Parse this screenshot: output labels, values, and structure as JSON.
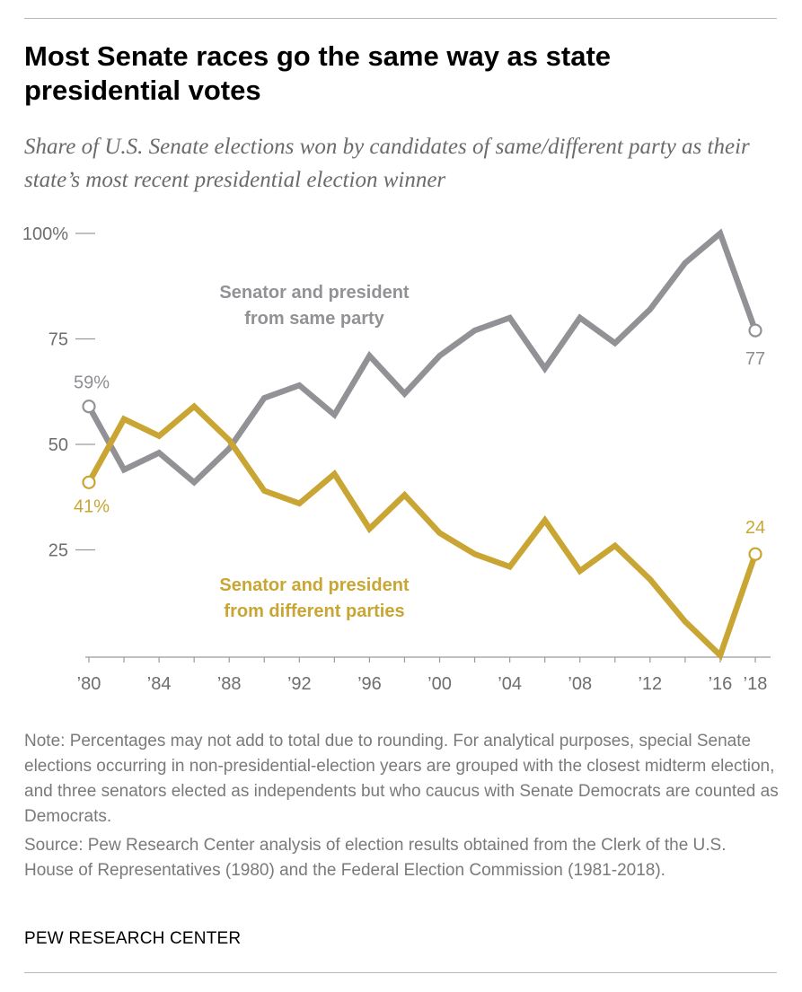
{
  "title": "Most Senate races go the same way as state presidential votes",
  "subtitle": "Share of U.S. Senate elections won by candidates of same/different party as their state’s most recent presidential election winner",
  "note": "Note: Percentages may not add to total due to rounding. For analytical purposes, special Senate elections occurring in non-presidential-election years are grouped with the closest midterm election, and three senators elected as independents but who caucus with Senate Democrats are counted as Democrats.",
  "source": "Source: Pew Research Center analysis of election results obtained from the Clerk of the U.S. House of Representatives (1980) and the Federal Election Commission (1981-2018).",
  "footer": "PEW RESEARCH CENTER",
  "colors": {
    "same": "#929296",
    "different": "#c9a633"
  },
  "chart_data": {
    "type": "line",
    "x": [
      1980,
      1982,
      1984,
      1986,
      1988,
      1990,
      1992,
      1994,
      1996,
      1998,
      2000,
      2002,
      2004,
      2006,
      2008,
      2010,
      2012,
      2014,
      2016,
      2018
    ],
    "xtick_values": [
      1980,
      1984,
      1988,
      1992,
      1996,
      2000,
      2004,
      2008,
      2012,
      2016,
      2018
    ],
    "xtick_labels": [
      "’80",
      "’84",
      "’88",
      "’92",
      "’96",
      "’00",
      "’04",
      "’08",
      "’12",
      "’16",
      "’18"
    ],
    "ytick_values": [
      25,
      50,
      75,
      100
    ],
    "ytick_labels": [
      "25",
      "50",
      "75",
      "100%"
    ],
    "ylim": [
      0,
      100
    ],
    "series": [
      {
        "key": "same",
        "name_lines": [
          "Senator and president",
          "from same party"
        ],
        "values": [
          59,
          44,
          48,
          41,
          49,
          61,
          64,
          57,
          71,
          62,
          71,
          77,
          80,
          68,
          80,
          74,
          82,
          93,
          100,
          77
        ],
        "start_label": "59%",
        "end_label": "77"
      },
      {
        "key": "different",
        "name_lines": [
          "Senator and president",
          "from different parties"
        ],
        "values": [
          41,
          56,
          52,
          59,
          51,
          39,
          36,
          43,
          30,
          38,
          29,
          24,
          21,
          32,
          20,
          26,
          18,
          8,
          0,
          24
        ],
        "start_label": "41%",
        "end_label": "24"
      }
    ]
  }
}
